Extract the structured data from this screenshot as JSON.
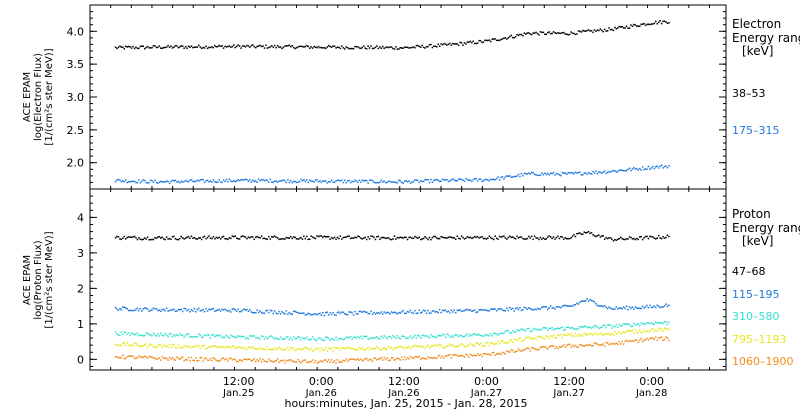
{
  "chart_data": [
    {
      "type": "scatter",
      "ylabel_lines": [
        "ACE EPAM",
        "log(Electron Flux)",
        "[1/(cm²s ster MeV)]"
      ],
      "ylim": [
        1.6,
        4.4
      ],
      "yticks": [
        2.0,
        2.5,
        3.0,
        3.5,
        4.0
      ],
      "ytick_labels": [
        "2.0",
        "2.5",
        "3.0",
        "3.5",
        "4.0"
      ],
      "legend_title": [
        "Electron",
        "Energy ranges",
        "[keV]"
      ],
      "series": [
        {
          "name": "38–53",
          "color": "#000000",
          "x": [
            -0.25,
            0.0,
            0.5,
            1.0,
            1.5,
            1.75,
            2.0,
            2.15,
            2.25,
            2.5,
            2.75,
            3.0,
            3.1
          ],
          "values": [
            3.76,
            3.77,
            3.78,
            3.77,
            3.76,
            3.8,
            3.86,
            3.93,
            3.98,
            3.98,
            4.04,
            4.14,
            4.16
          ]
        },
        {
          "name": "175–315",
          "color": "#1e78dc",
          "x": [
            -0.25,
            0.0,
            0.5,
            1.0,
            1.5,
            1.75,
            2.0,
            2.15,
            2.25,
            2.5,
            2.75,
            3.0,
            3.1
          ],
          "values": [
            1.74,
            1.72,
            1.74,
            1.73,
            1.72,
            1.74,
            1.75,
            1.8,
            1.84,
            1.84,
            1.88,
            1.94,
            1.96
          ]
        }
      ]
    },
    {
      "type": "scatter",
      "ylabel_lines": [
        "ACE EPAM",
        "log(Proton Flux)",
        "[1/(cm²s ster MeV)]"
      ],
      "ylim": [
        -0.3,
        4.8
      ],
      "yticks": [
        0,
        1,
        2,
        3,
        4
      ],
      "ytick_labels": [
        "0",
        "1",
        "2",
        "3",
        "4"
      ],
      "legend_title": [
        "Proton",
        "Energy ranges",
        "[keV]"
      ],
      "series": [
        {
          "name": "47–68",
          "color": "#000000",
          "x": [
            -0.25,
            0.0,
            0.5,
            1.0,
            1.5,
            2.0,
            2.5,
            2.6,
            2.75,
            3.0,
            3.1
          ],
          "values": [
            3.45,
            3.44,
            3.45,
            3.45,
            3.44,
            3.45,
            3.45,
            3.6,
            3.4,
            3.45,
            3.48
          ]
        },
        {
          "name": "115–195",
          "color": "#1e78dc",
          "x": [
            -0.25,
            0.0,
            0.5,
            1.0,
            1.5,
            2.0,
            2.5,
            2.6,
            2.75,
            3.0,
            3.1
          ],
          "values": [
            1.45,
            1.42,
            1.4,
            1.3,
            1.35,
            1.4,
            1.5,
            1.7,
            1.45,
            1.5,
            1.55
          ]
        },
        {
          "name": "310–580",
          "color": "#33e0d0",
          "x": [
            -0.25,
            0.0,
            0.5,
            1.0,
            1.5,
            2.0,
            2.25,
            2.5,
            2.75,
            3.0,
            3.1
          ],
          "values": [
            0.75,
            0.72,
            0.65,
            0.6,
            0.65,
            0.72,
            0.85,
            0.9,
            0.95,
            1.05,
            1.05
          ]
        },
        {
          "name": "795–1193",
          "color": "#e6e61e",
          "x": [
            -0.25,
            0.0,
            0.5,
            1.0,
            1.5,
            2.0,
            2.25,
            2.5,
            2.75,
            3.0,
            3.1
          ],
          "values": [
            0.45,
            0.4,
            0.35,
            0.3,
            0.35,
            0.45,
            0.6,
            0.7,
            0.75,
            0.85,
            0.85
          ]
        },
        {
          "name": "1060–1900",
          "color": "#f08c1e",
          "x": [
            -0.25,
            0.0,
            0.5,
            1.0,
            1.5,
            2.0,
            2.25,
            2.5,
            2.75,
            3.0,
            3.1
          ],
          "values": [
            0.1,
            0.05,
            0.0,
            -0.05,
            0.05,
            0.15,
            0.3,
            0.4,
            0.45,
            0.6,
            0.6
          ]
        }
      ]
    }
  ],
  "x_axis": {
    "xlim": [
      -0.4,
      3.45
    ],
    "major_ticks": [
      0.0,
      0.5,
      1.0,
      1.5,
      2.0,
      2.5,
      3.0
    ],
    "labels_time": [
      "12:00",
      "0:00",
      "12:00",
      "0:00",
      "12:00",
      "0:00"
    ],
    "labels_date": [
      "Jan.25",
      "Jan.26",
      "Jan.26",
      "Jan.27",
      "Jan.27",
      "Jan.28"
    ],
    "label_positions": [
      0.5,
      1.0,
      1.5,
      2.0,
      2.5,
      3.0
    ],
    "xlabel": "hours:minutes, Jan. 25, 2015 - Jan. 28, 2015"
  }
}
